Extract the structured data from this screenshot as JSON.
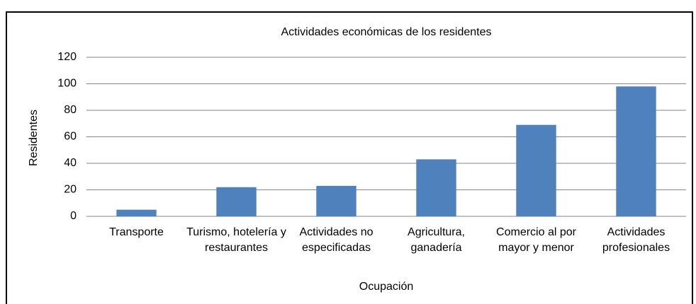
{
  "chart_data": {
    "type": "bar",
    "title": "Actividades económicas de los residentes",
    "xlabel": "Ocupación",
    "ylabel": "Residentes",
    "categories": [
      "Transporte",
      "Turismo, hotelería y restaurantes",
      "Actividades no especificadas",
      "Agricultura, ganadería",
      "Comercio al por mayor y menor",
      "Actividades profesionales"
    ],
    "values": [
      5,
      22,
      23,
      43,
      69,
      98
    ],
    "color": "#4f81bd",
    "ylim": [
      0,
      120
    ],
    "yticks": [
      0,
      20,
      40,
      60,
      80,
      100,
      120
    ],
    "grid": true
  }
}
